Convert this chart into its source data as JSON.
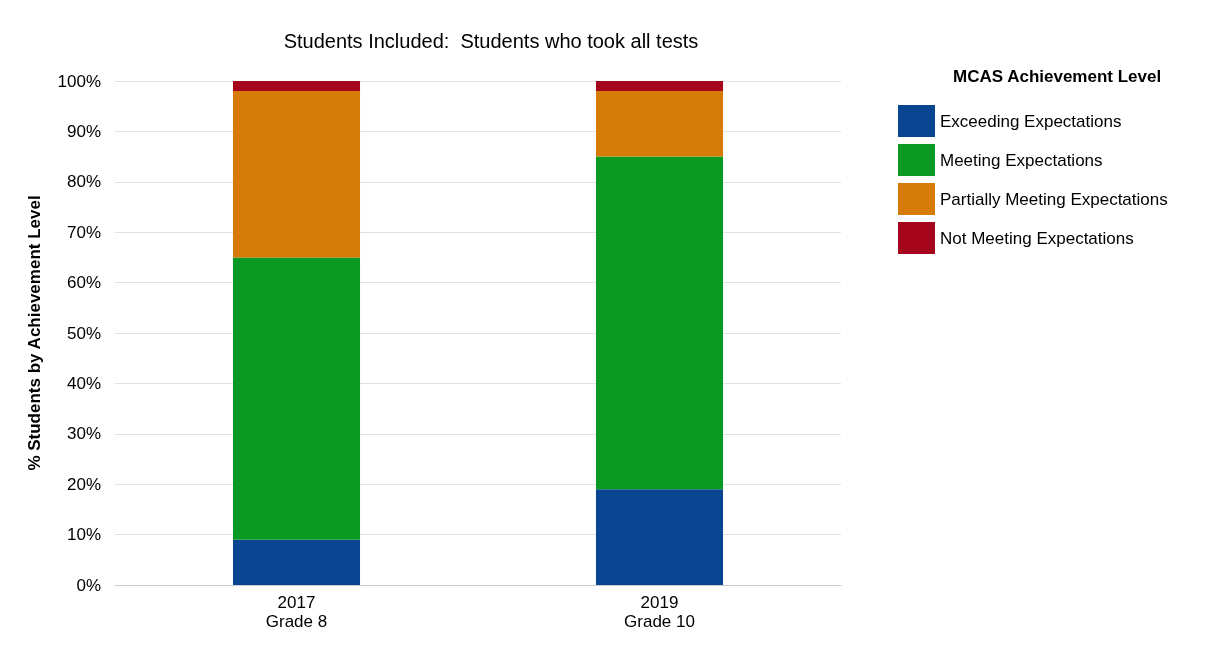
{
  "chart_data": {
    "type": "bar",
    "stacked": true,
    "title": "Students Included:  Students who took all tests",
    "ylabel": "% Students by Achievement Level",
    "legend_title": "MCAS Achievement Level",
    "categories": [
      "2017\nGrade 8",
      "2019\nGrade 10"
    ],
    "series": [
      {
        "name": "Exceeding Expectations",
        "color": "#0a4592",
        "values": [
          9,
          19
        ]
      },
      {
        "name": "Meeting Expectations",
        "color": "#0a9a23",
        "values": [
          56,
          66
        ]
      },
      {
        "name": "Partially Meeting Expectations",
        "color": "#d67b07",
        "values": [
          33,
          13
        ]
      },
      {
        "name": "Not Meeting Expectations",
        "color": "#a5061c",
        "values": [
          2,
          2
        ]
      }
    ],
    "ylim": [
      0,
      100
    ],
    "yticks": [
      {
        "value": 0,
        "label": "0%"
      },
      {
        "value": 10,
        "label": "10%"
      },
      {
        "value": 20,
        "label": "20%"
      },
      {
        "value": 30,
        "label": "30%"
      },
      {
        "value": 40,
        "label": "40%"
      },
      {
        "value": 50,
        "label": "50%"
      },
      {
        "value": 60,
        "label": "60%"
      },
      {
        "value": 70,
        "label": "70%"
      },
      {
        "value": 80,
        "label": "80%"
      },
      {
        "value": 90,
        "label": "90%"
      },
      {
        "value": 100,
        "label": "100%"
      }
    ],
    "grid": "y",
    "legend": "right"
  }
}
